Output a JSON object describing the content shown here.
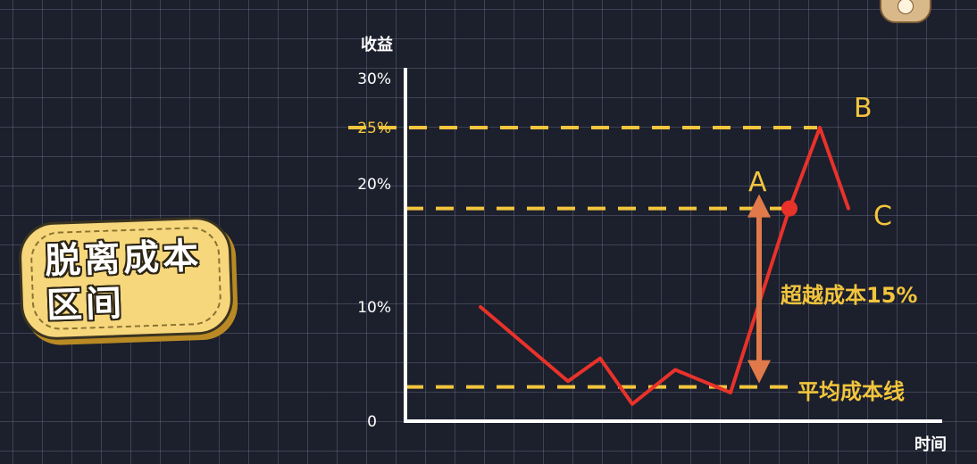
{
  "chart_data": {
    "type": "line",
    "title": "",
    "ylabel": "收益",
    "xlabel": "时间",
    "y_ticks": [
      "0",
      "10%",
      "20%",
      "25%",
      "30%"
    ],
    "highlight_tick": "25%",
    "series": [
      {
        "values": [
          10,
          3.5,
          5.5,
          1.5,
          4.5,
          2.5,
          18,
          25,
          18
        ]
      }
    ],
    "marker_point": {
      "value": 18
    },
    "reference_lines": [
      {
        "label": "平均成本线",
        "value": 3
      },
      {
        "value": 18
      },
      {
        "value": 25
      }
    ],
    "annotations": {
      "range_label": "超越成本15%",
      "point_a": "A",
      "point_b": "B",
      "point_c": "C"
    },
    "ylim": [
      0,
      30
    ],
    "colors": {
      "line": "#e8322a",
      "reference": "#f2c53d",
      "arrow": "#e07a4a",
      "axis": "#ffffff"
    }
  },
  "badge": {
    "text": "脱离成本区间"
  },
  "mascot_icon": "mascot-icon"
}
